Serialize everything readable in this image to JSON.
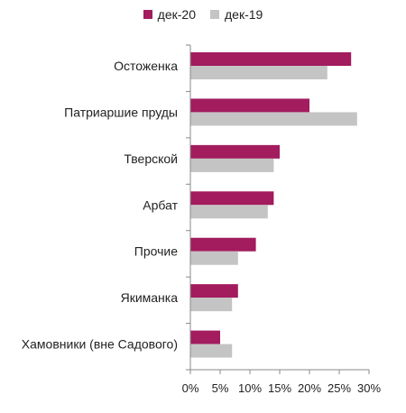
{
  "chart_data": {
    "type": "bar",
    "orientation": "horizontal",
    "categories": [
      "Остоженка",
      "Патриаршие пруды",
      "Тверской",
      "Арбат",
      "Прочие",
      "Якиманка",
      "Хамовники (вне Садового)"
    ],
    "series": [
      {
        "name": "дек-20",
        "color": "#A21C5E",
        "values": [
          27,
          20,
          15,
          14,
          11,
          8,
          5
        ]
      },
      {
        "name": "дек-19",
        "color": "#C4C4C4",
        "values": [
          23,
          28,
          14,
          13,
          8,
          7,
          7
        ]
      }
    ],
    "xlim": [
      0,
      30
    ],
    "x_ticks": [
      "0%",
      "5%",
      "10%",
      "15%",
      "20%",
      "25%",
      "30%"
    ],
    "grid": false,
    "legend": "top-center"
  }
}
